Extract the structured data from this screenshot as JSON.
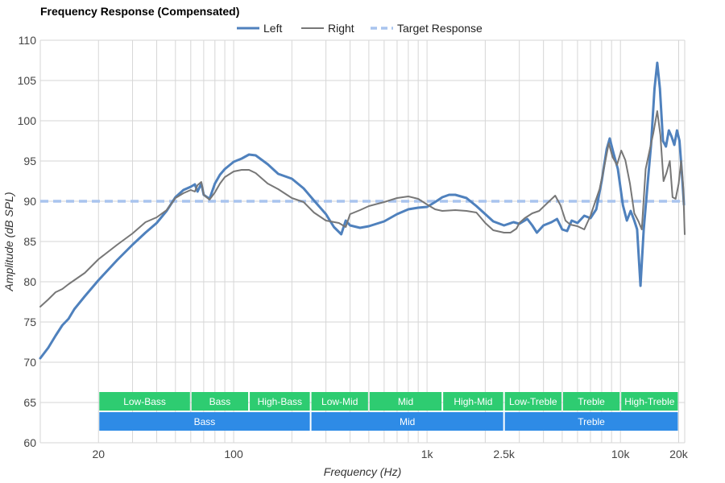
{
  "chart_data": {
    "type": "line",
    "title": "Frequency Response (Compensated)",
    "xlabel": "Frequency (Hz)",
    "ylabel": "Amplitude (dB SPL)",
    "x_scale": "log",
    "xlim": [
      10,
      21500
    ],
    "ylim": [
      60,
      110
    ],
    "grid": true,
    "legend_position": "top-center",
    "yticks": [
      {
        "value": 60,
        "label": "60"
      },
      {
        "value": 65,
        "label": "65"
      },
      {
        "value": 70,
        "label": "70"
      },
      {
        "value": 75,
        "label": "75"
      },
      {
        "value": 80,
        "label": "80"
      },
      {
        "value": 85,
        "label": "85"
      },
      {
        "value": 90,
        "label": "90"
      },
      {
        "value": 95,
        "label": "95"
      },
      {
        "value": 100,
        "label": "100"
      },
      {
        "value": 105,
        "label": "105"
      },
      {
        "value": 110,
        "label": "110"
      }
    ],
    "xticks": [
      {
        "value": 20,
        "label": "20"
      },
      {
        "value": 100,
        "label": "100"
      },
      {
        "value": 1000,
        "label": "1k"
      },
      {
        "value": 2500,
        "label": "2.5k"
      },
      {
        "value": 10000,
        "label": "10k"
      },
      {
        "value": 20000,
        "label": "20k"
      }
    ],
    "series": [
      {
        "name": "Left",
        "color": "#4f81bd",
        "dash": "solid",
        "points": [
          [
            10,
            70.5
          ],
          [
            11,
            71.8
          ],
          [
            12,
            73.3
          ],
          [
            13,
            74.6
          ],
          [
            14,
            75.4
          ],
          [
            15,
            76.6
          ],
          [
            17,
            78.2
          ],
          [
            20,
            80.2
          ],
          [
            25,
            82.7
          ],
          [
            30,
            84.6
          ],
          [
            35,
            86.1
          ],
          [
            40,
            87.3
          ],
          [
            45,
            88.8
          ],
          [
            50,
            90.5
          ],
          [
            55,
            91.4
          ],
          [
            60,
            91.8
          ],
          [
            63,
            92.1
          ],
          [
            65,
            91.2
          ],
          [
            68,
            92.2
          ],
          [
            70,
            90.8
          ],
          [
            75,
            90.3
          ],
          [
            80,
            92.2
          ],
          [
            85,
            93.3
          ],
          [
            90,
            94.0
          ],
          [
            100,
            94.9
          ],
          [
            110,
            95.3
          ],
          [
            120,
            95.8
          ],
          [
            130,
            95.7
          ],
          [
            150,
            94.6
          ],
          [
            170,
            93.4
          ],
          [
            200,
            92.8
          ],
          [
            230,
            91.6
          ],
          [
            260,
            90.1
          ],
          [
            300,
            88.4
          ],
          [
            330,
            86.8
          ],
          [
            360,
            85.9
          ],
          [
            380,
            87.6
          ],
          [
            400,
            87.0
          ],
          [
            450,
            86.7
          ],
          [
            500,
            86.9
          ],
          [
            600,
            87.5
          ],
          [
            700,
            88.4
          ],
          [
            800,
            89.0
          ],
          [
            900,
            89.2
          ],
          [
            1000,
            89.3
          ],
          [
            1100,
            89.9
          ],
          [
            1200,
            90.5
          ],
          [
            1300,
            90.8
          ],
          [
            1400,
            90.8
          ],
          [
            1600,
            90.4
          ],
          [
            1800,
            89.4
          ],
          [
            2000,
            88.4
          ],
          [
            2200,
            87.5
          ],
          [
            2500,
            87.0
          ],
          [
            2800,
            87.4
          ],
          [
            3000,
            87.2
          ],
          [
            3300,
            87.8
          ],
          [
            3500,
            87.0
          ],
          [
            3700,
            86.1
          ],
          [
            4000,
            87.0
          ],
          [
            4400,
            87.4
          ],
          [
            4700,
            87.8
          ],
          [
            5000,
            86.5
          ],
          [
            5300,
            86.3
          ],
          [
            5600,
            87.6
          ],
          [
            6000,
            87.3
          ],
          [
            6500,
            88.2
          ],
          [
            7000,
            87.9
          ],
          [
            7500,
            89.0
          ],
          [
            8000,
            92.5
          ],
          [
            8500,
            96.5
          ],
          [
            8800,
            97.8
          ],
          [
            9200,
            96.0
          ],
          [
            9700,
            94.0
          ],
          [
            10300,
            89.5
          ],
          [
            10800,
            87.6
          ],
          [
            11300,
            88.8
          ],
          [
            11800,
            87.6
          ],
          [
            12200,
            86.5
          ],
          [
            12700,
            79.5
          ],
          [
            13200,
            86.5
          ],
          [
            13800,
            92.0
          ],
          [
            14400,
            97.0
          ],
          [
            15000,
            104.0
          ],
          [
            15500,
            107.2
          ],
          [
            16000,
            104.0
          ],
          [
            16600,
            97.5
          ],
          [
            17200,
            96.8
          ],
          [
            17800,
            98.8
          ],
          [
            18400,
            98.0
          ],
          [
            19000,
            97.0
          ],
          [
            19600,
            98.8
          ],
          [
            20200,
            97.5
          ],
          [
            20800,
            93.5
          ],
          [
            21300,
            89.6
          ]
        ]
      },
      {
        "name": "Right",
        "color": "#777777",
        "dash": "solid",
        "points": [
          [
            10,
            76.9
          ],
          [
            11,
            77.8
          ],
          [
            12,
            78.7
          ],
          [
            13,
            79.1
          ],
          [
            14,
            79.7
          ],
          [
            15,
            80.2
          ],
          [
            17,
            81.1
          ],
          [
            20,
            82.8
          ],
          [
            25,
            84.6
          ],
          [
            30,
            86.0
          ],
          [
            35,
            87.4
          ],
          [
            40,
            88.0
          ],
          [
            45,
            88.9
          ],
          [
            50,
            90.4
          ],
          [
            55,
            91.0
          ],
          [
            60,
            91.4
          ],
          [
            63,
            91.2
          ],
          [
            65,
            92.0
          ],
          [
            68,
            92.4
          ],
          [
            70,
            90.8
          ],
          [
            75,
            90.2
          ],
          [
            80,
            91.1
          ],
          [
            85,
            92.2
          ],
          [
            90,
            93.0
          ],
          [
            100,
            93.7
          ],
          [
            110,
            93.9
          ],
          [
            120,
            93.9
          ],
          [
            130,
            93.5
          ],
          [
            150,
            92.2
          ],
          [
            170,
            91.5
          ],
          [
            200,
            90.4
          ],
          [
            230,
            89.9
          ],
          [
            260,
            88.6
          ],
          [
            300,
            87.6
          ],
          [
            350,
            87.3
          ],
          [
            380,
            86.8
          ],
          [
            400,
            88.4
          ],
          [
            450,
            88.9
          ],
          [
            500,
            89.4
          ],
          [
            600,
            89.9
          ],
          [
            700,
            90.4
          ],
          [
            800,
            90.6
          ],
          [
            900,
            90.3
          ],
          [
            1000,
            89.6
          ],
          [
            1100,
            89.0
          ],
          [
            1200,
            88.8
          ],
          [
            1400,
            88.9
          ],
          [
            1600,
            88.8
          ],
          [
            1800,
            88.6
          ],
          [
            2000,
            87.3
          ],
          [
            2200,
            86.4
          ],
          [
            2500,
            86.1
          ],
          [
            2700,
            86.1
          ],
          [
            2900,
            86.6
          ],
          [
            3000,
            87.3
          ],
          [
            3200,
            87.9
          ],
          [
            3500,
            88.5
          ],
          [
            3800,
            88.8
          ],
          [
            4200,
            89.8
          ],
          [
            4600,
            90.7
          ],
          [
            4900,
            89.5
          ],
          [
            5200,
            87.6
          ],
          [
            5500,
            87.1
          ],
          [
            6000,
            86.9
          ],
          [
            6500,
            86.5
          ],
          [
            7000,
            88.2
          ],
          [
            7400,
            89.9
          ],
          [
            7800,
            91.5
          ],
          [
            8200,
            94.0
          ],
          [
            8700,
            97.2
          ],
          [
            9100,
            95.5
          ],
          [
            9600,
            94.5
          ],
          [
            10100,
            96.3
          ],
          [
            10600,
            95.1
          ],
          [
            11200,
            92.2
          ],
          [
            11800,
            88.5
          ],
          [
            12400,
            87.5
          ],
          [
            12900,
            86.5
          ],
          [
            13500,
            94.0
          ],
          [
            14200,
            96.5
          ],
          [
            14800,
            98.5
          ],
          [
            15500,
            101.2
          ],
          [
            16100,
            98.2
          ],
          [
            16700,
            92.5
          ],
          [
            17300,
            93.5
          ],
          [
            18000,
            95.0
          ],
          [
            18600,
            90.5
          ],
          [
            19300,
            90.3
          ],
          [
            20000,
            92.2
          ],
          [
            20600,
            95.0
          ],
          [
            21100,
            92.0
          ],
          [
            21500,
            85.9
          ]
        ]
      },
      {
        "name": "Target Response",
        "color": "#a9c4ee",
        "dash": "dashed",
        "points": [
          [
            10,
            90.0
          ],
          [
            21500,
            90.0
          ]
        ]
      }
    ],
    "bands": [
      {
        "row": 1,
        "label": "Low-Bass",
        "from": 20,
        "to": 60,
        "color": "#2ecc71"
      },
      {
        "row": 1,
        "label": "Bass",
        "from": 60,
        "to": 120,
        "color": "#2ecc71"
      },
      {
        "row": 1,
        "label": "High-Bass",
        "from": 120,
        "to": 250,
        "color": "#2ecc71"
      },
      {
        "row": 1,
        "label": "Low-Mid",
        "from": 250,
        "to": 500,
        "color": "#2ecc71"
      },
      {
        "row": 1,
        "label": "Mid",
        "from": 500,
        "to": 1200,
        "color": "#2ecc71"
      },
      {
        "row": 1,
        "label": "High-Mid",
        "from": 1200,
        "to": 2500,
        "color": "#2ecc71"
      },
      {
        "row": 1,
        "label": "Low-Treble",
        "from": 2500,
        "to": 5000,
        "color": "#2ecc71"
      },
      {
        "row": 1,
        "label": "Treble",
        "from": 5000,
        "to": 10000,
        "color": "#2ecc71"
      },
      {
        "row": 1,
        "label": "High-Treble",
        "from": 10000,
        "to": 20000,
        "color": "#2ecc71"
      },
      {
        "row": 2,
        "label": "Bass",
        "from": 20,
        "to": 250,
        "color": "#2e8be6"
      },
      {
        "row": 2,
        "label": "Mid",
        "from": 250,
        "to": 2500,
        "color": "#2e8be6"
      },
      {
        "row": 2,
        "label": "Treble",
        "from": 2500,
        "to": 20000,
        "color": "#2e8be6"
      }
    ]
  }
}
